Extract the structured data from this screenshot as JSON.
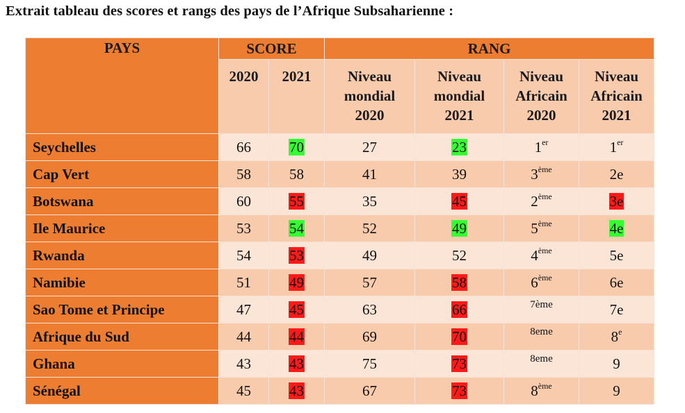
{
  "title": "Extrait tableau des scores et rangs des pays de l’Afrique Subsaharienne :",
  "headers": {
    "pays": "PAYS",
    "score": "SCORE",
    "rang": "RANG",
    "score_2020": "2020",
    "score_2021": "2021",
    "rang_cols": [
      [
        "Niveau",
        "mondial",
        "2020"
      ],
      [
        "Niveau",
        "mondial",
        "2021"
      ],
      [
        "Niveau",
        "Africain",
        "2020"
      ],
      [
        "Niveau",
        "Africain",
        "2021"
      ]
    ]
  },
  "colors": {
    "header": "#ed7d31",
    "row_dark": "#f8cbad",
    "row_light": "#fbe5d6",
    "green": "#33ff33",
    "red": "#ff1a1a"
  },
  "rows": [
    {
      "pays": "Seychelles",
      "s2020": "66",
      "s2021": "70",
      "s2021_hl": "green",
      "m2020": "27",
      "m2021": "23",
      "m2021_hl": "green",
      "a2020": "1",
      "a2020_sup": "er",
      "a2020_small": false,
      "a2021": "1",
      "a2021_sup": "er",
      "a2021_hl": ""
    },
    {
      "pays": "Cap Vert",
      "s2020": "58",
      "s2021": "58",
      "s2021_hl": "",
      "m2020": "41",
      "m2021": "39",
      "m2021_hl": "",
      "a2020": "3",
      "a2020_sup": "ème",
      "a2020_small": false,
      "a2021": "2e",
      "a2021_sup": "",
      "a2021_hl": ""
    },
    {
      "pays": "Botswana",
      "s2020": "60",
      "s2021": "55",
      "s2021_hl": "red",
      "m2020": "35",
      "m2021": "45",
      "m2021_hl": "red",
      "a2020": "2",
      "a2020_sup": "ème",
      "a2020_small": false,
      "a2021": "3e",
      "a2021_sup": "",
      "a2021_hl": "red"
    },
    {
      "pays": "Ile Maurice",
      "s2020": "53",
      "s2021": "54",
      "s2021_hl": "green",
      "m2020": "52",
      "m2021": "49",
      "m2021_hl": "green",
      "a2020": "5",
      "a2020_sup": "ème",
      "a2020_small": false,
      "a2021": "4e",
      "a2021_sup": "",
      "a2021_hl": "green"
    },
    {
      "pays": "Rwanda",
      "s2020": "54",
      "s2021": "53",
      "s2021_hl": "red",
      "m2020": "49",
      "m2021": "52",
      "m2021_hl": "",
      "a2020": "4",
      "a2020_sup": "ème",
      "a2020_small": false,
      "a2021": "5e",
      "a2021_sup": "",
      "a2021_hl": ""
    },
    {
      "pays": "Namibie",
      "s2020": "51",
      "s2021": "49",
      "s2021_hl": "red",
      "m2020": "57",
      "m2021": "58",
      "m2021_hl": "red",
      "a2020": "6",
      "a2020_sup": "ème",
      "a2020_small": false,
      "a2021": "6e",
      "a2021_sup": "",
      "a2021_hl": ""
    },
    {
      "pays": "Sao Tome et Principe",
      "s2020": "47",
      "s2021": "45",
      "s2021_hl": "red",
      "m2020": "63",
      "m2021": "66",
      "m2021_hl": "red",
      "a2020": "7ème",
      "a2020_sup": "",
      "a2020_small": true,
      "a2021": "7e",
      "a2021_sup": "",
      "a2021_hl": ""
    },
    {
      "pays": "Afrique du Sud",
      "s2020": "44",
      "s2021": "44",
      "s2021_hl": "red",
      "m2020": "69",
      "m2021": "70",
      "m2021_hl": "red",
      "a2020": "8eme",
      "a2020_sup": "",
      "a2020_small": true,
      "a2021": "8",
      "a2021_sup": "e",
      "a2021_hl": ""
    },
    {
      "pays": "Ghana",
      "s2020": "43",
      "s2021": "43",
      "s2021_hl": "red",
      "m2020": "75",
      "m2021": "73",
      "m2021_hl": "red",
      "a2020": "8eme",
      "a2020_sup": "",
      "a2020_small": true,
      "a2021": "9",
      "a2021_sup": "",
      "a2021_hl": ""
    },
    {
      "pays": "Sénégal",
      "s2020": "45",
      "s2021": "43",
      "s2021_hl": "red",
      "m2020": "67",
      "m2021": "73",
      "m2021_hl": "red",
      "a2020": "8",
      "a2020_sup": "ème",
      "a2020_small": false,
      "a2021": "9",
      "a2021_sup": "",
      "a2021_hl": ""
    }
  ]
}
